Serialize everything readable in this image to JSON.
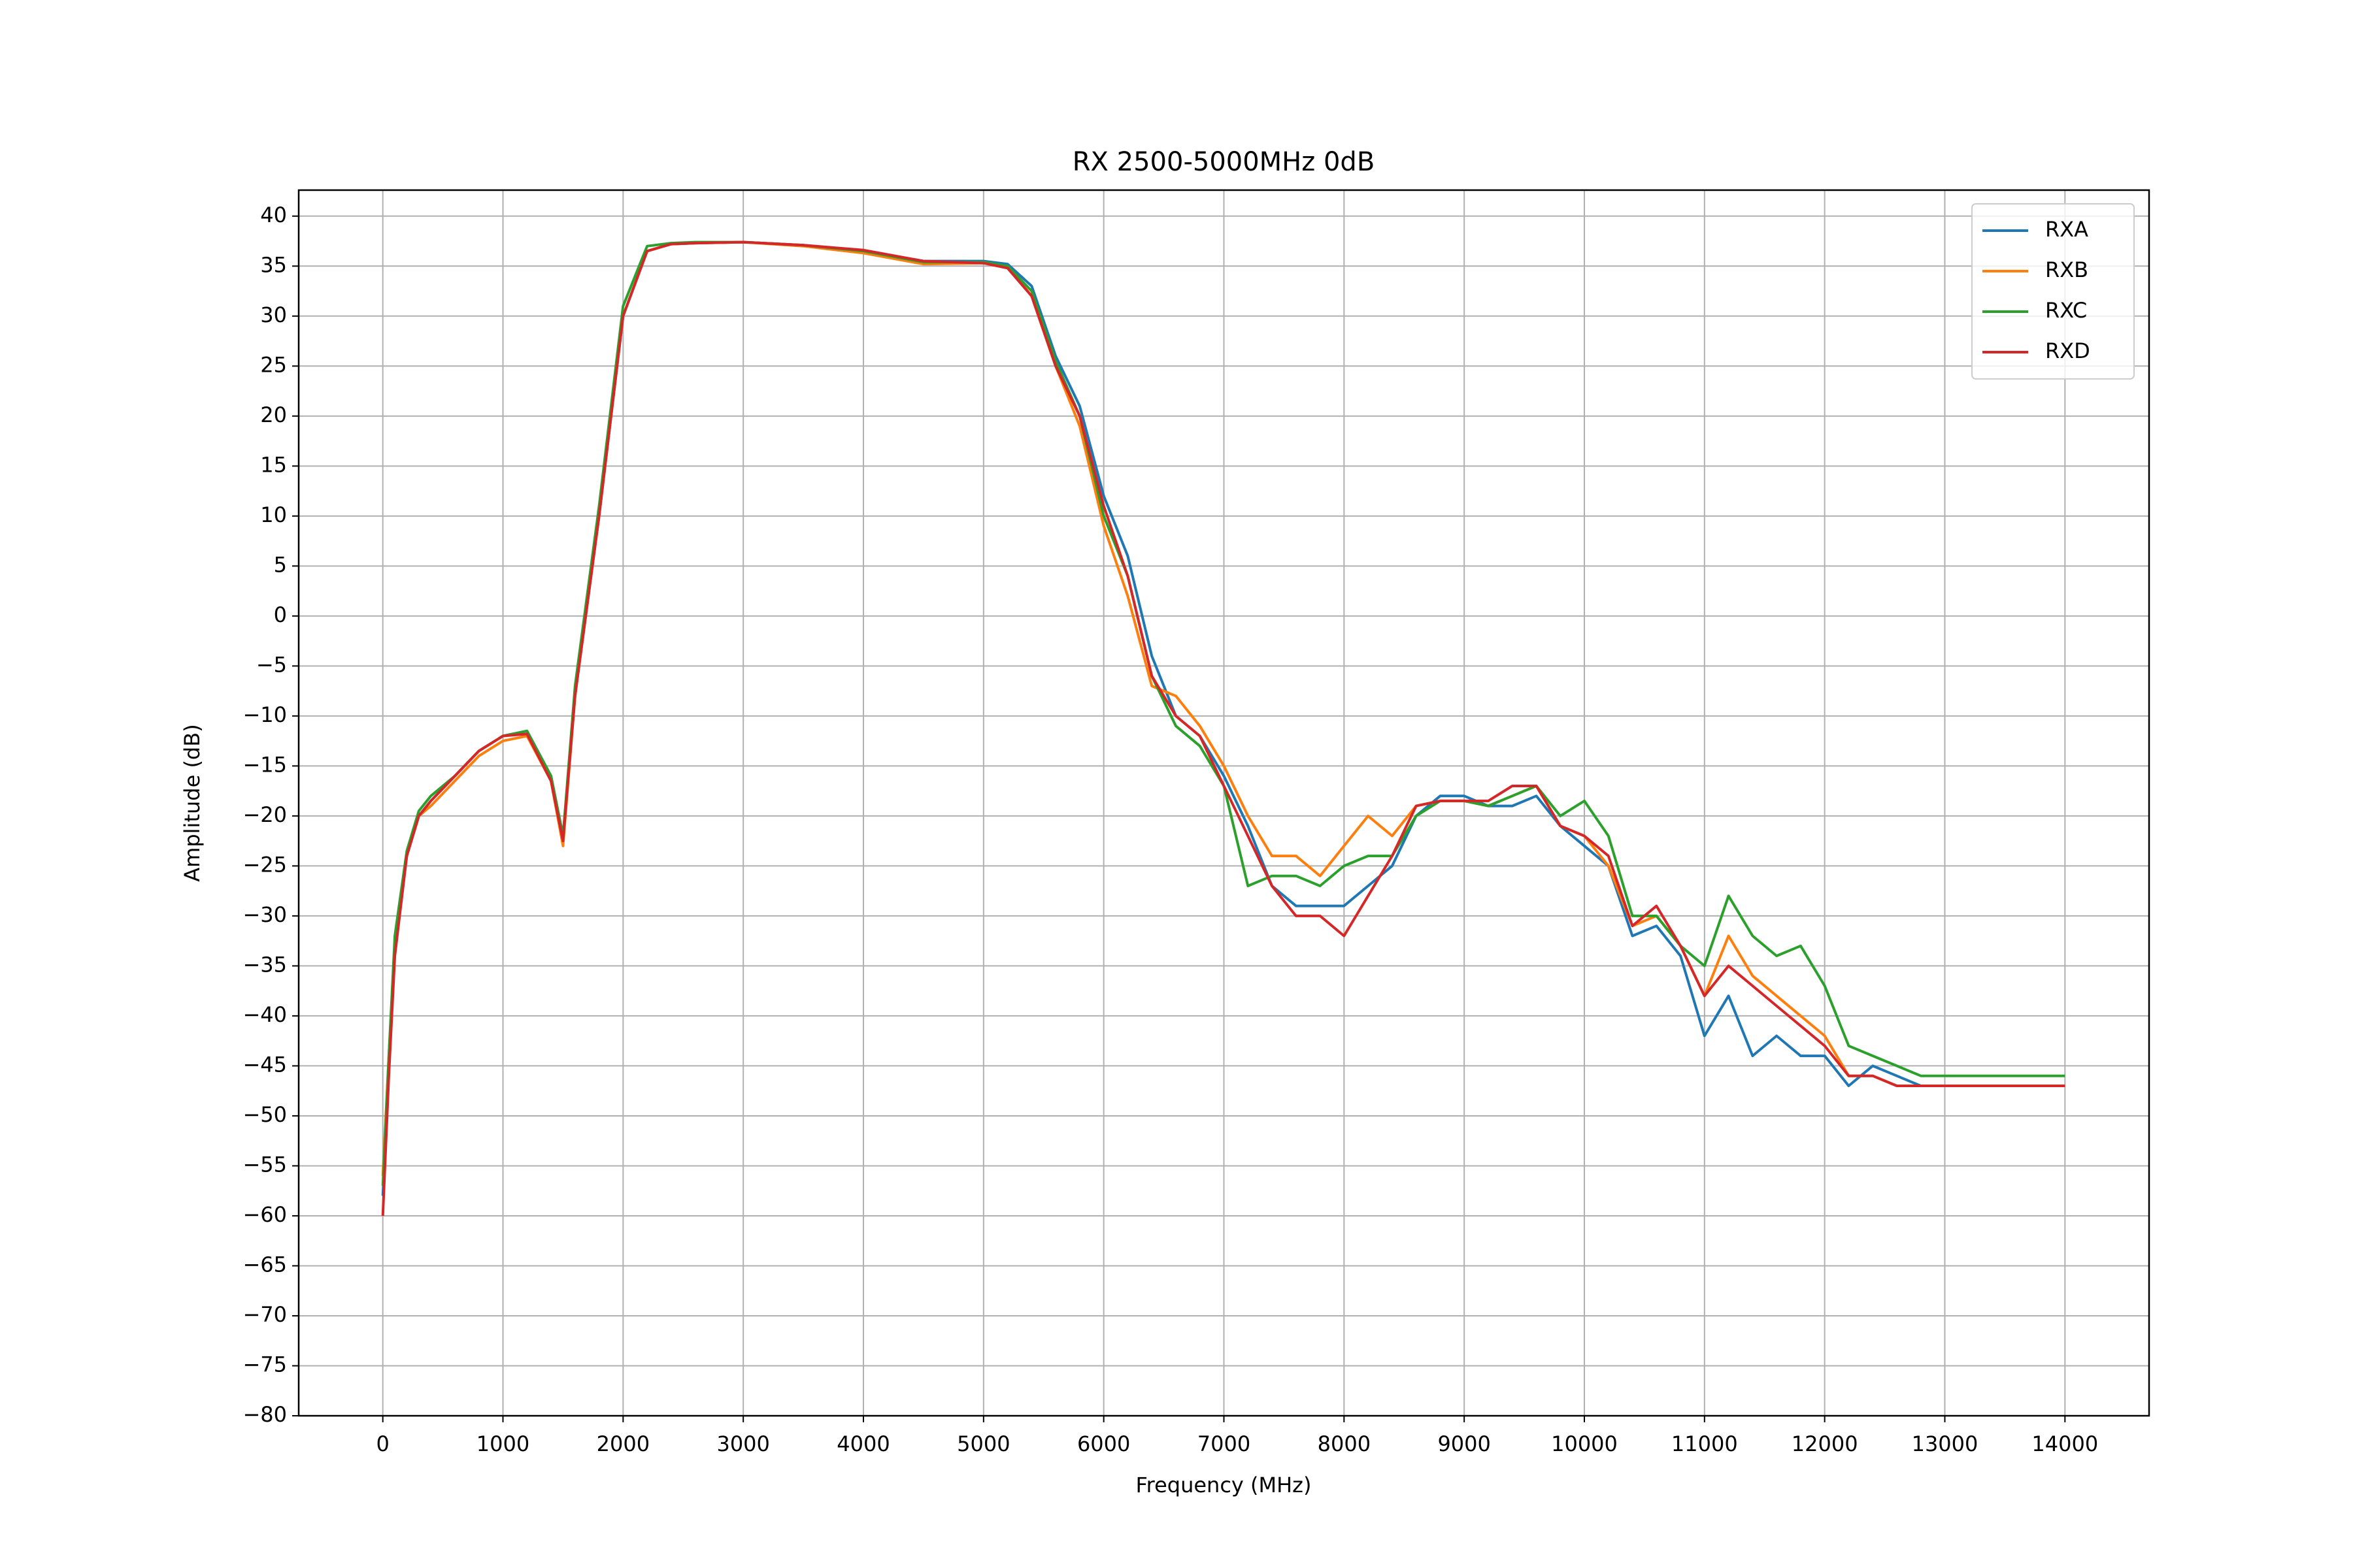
{
  "chart_data": {
    "type": "line",
    "title": "RX 2500-5000MHz 0dB",
    "xlabel": "Frequency (MHz)",
    "ylabel": "Amplitude (dB)",
    "xlim": [
      -700,
      14700
    ],
    "ylim": [
      -80,
      42.6
    ],
    "xticks": [
      0,
      1000,
      2000,
      3000,
      4000,
      5000,
      6000,
      7000,
      8000,
      9000,
      10000,
      11000,
      12000,
      13000,
      14000
    ],
    "yticks": [
      {
        "value": -80,
        "label": "−80"
      },
      {
        "value": -75,
        "label": "−75"
      },
      {
        "value": -70,
        "label": "−70"
      },
      {
        "value": -65,
        "label": "−65"
      },
      {
        "value": -60,
        "label": "−60"
      },
      {
        "value": -55,
        "label": "−55"
      },
      {
        "value": -50,
        "label": "−50"
      },
      {
        "value": -45,
        "label": "−45"
      },
      {
        "value": -40,
        "label": "−40"
      },
      {
        "value": -35,
        "label": "−35"
      },
      {
        "value": -30,
        "label": "−30"
      },
      {
        "value": -25,
        "label": "−25"
      },
      {
        "value": -20,
        "label": "−20"
      },
      {
        "value": -15,
        "label": "−15"
      },
      {
        "value": -10,
        "label": "−10"
      },
      {
        "value": -5,
        "label": "−5"
      },
      0,
      5,
      10,
      15,
      20,
      25,
      30,
      35,
      40
    ],
    "grid": true,
    "legend": "upper right",
    "x": [
      0,
      50,
      100,
      200,
      300,
      400,
      600,
      800,
      1000,
      1200,
      1400,
      1500,
      1600,
      1800,
      2000,
      2200,
      2400,
      2600,
      3000,
      3500,
      4000,
      4500,
      5000,
      5200,
      5400,
      5600,
      5800,
      6000,
      6200,
      6400,
      6600,
      6800,
      7000,
      7200,
      7400,
      7600,
      7800,
      8000,
      8200,
      8400,
      8600,
      8800,
      9000,
      9200,
      9400,
      9600,
      9800,
      10000,
      10200,
      10400,
      10600,
      10800,
      11000,
      11200,
      11400,
      11600,
      11800,
      12000,
      12200,
      12400,
      12600,
      12800,
      13000,
      13200,
      13400,
      13600,
      13800,
      14000
    ],
    "series": [
      {
        "name": "RXA",
        "color": "#1f77b4",
        "values": [
          -58,
          -45,
          -33,
          -24,
          -20,
          -18.5,
          -16,
          -13.5,
          -12,
          -11.5,
          -16,
          -22,
          -8,
          10,
          30,
          36.5,
          37.2,
          37.3,
          37.4,
          37.1,
          36.5,
          35.5,
          35.5,
          35.2,
          33,
          26,
          21,
          12,
          6,
          -4,
          -10,
          -12,
          -16,
          -21,
          -27,
          -29,
          -29,
          -29,
          -27,
          -25,
          -20,
          -18,
          -18,
          -19,
          -19,
          -18,
          -21,
          -23,
          -25,
          -32,
          -31,
          -34,
          -42,
          -38,
          -44,
          -42,
          -44,
          -44,
          -47,
          -45,
          -46,
          -47,
          -47,
          -47,
          -47,
          -47,
          -47,
          -47
        ]
      },
      {
        "name": "RXB",
        "color": "#ff7f0e",
        "values": [
          -56,
          -44,
          -33,
          -24,
          -20,
          -19,
          -16.5,
          -14,
          -12.5,
          -12,
          -16.5,
          -23,
          -8,
          10,
          30,
          36.5,
          37.2,
          37.3,
          37.4,
          37,
          36.3,
          35.2,
          35.3,
          35,
          32,
          25,
          19,
          9,
          2,
          -7,
          -8,
          -11,
          -15,
          -20,
          -24,
          -24,
          -26,
          -23,
          -20,
          -22,
          -19,
          -18.5,
          -18.5,
          -19,
          -18,
          -17,
          -21,
          -22,
          -25,
          -31,
          -30,
          -33,
          -38,
          -32,
          -36,
          -38,
          -40,
          -42,
          -46,
          -46,
          -47,
          -47,
          -47,
          -47,
          -47,
          -47,
          -47,
          -47
        ]
      },
      {
        "name": "RXC",
        "color": "#2ca02c",
        "values": [
          -57,
          -44,
          -32,
          -23.5,
          -19.5,
          -18,
          -16,
          -13.5,
          -12,
          -11.5,
          -16,
          -22,
          -7,
          11,
          31,
          37,
          37.3,
          37.4,
          37.4,
          37.1,
          36.5,
          35.4,
          35.4,
          35,
          32.5,
          25.5,
          20,
          10,
          4,
          -6,
          -11,
          -13,
          -17,
          -27,
          -26,
          -26,
          -27,
          -25,
          -24,
          -24,
          -20,
          -18.5,
          -18.5,
          -19,
          -18,
          -17,
          -20,
          -18.5,
          -22,
          -30,
          -30,
          -33,
          -35,
          -28,
          -32,
          -34,
          -33,
          -37,
          -43,
          -44,
          -45,
          -46,
          -46,
          -46,
          -46,
          -46,
          -46,
          -46
        ]
      },
      {
        "name": "RXD",
        "color": "#d62728",
        "values": [
          -60,
          -46,
          -34,
          -24,
          -20,
          -18.5,
          -16,
          -13.5,
          -12,
          -11.8,
          -16.5,
          -22.5,
          -8,
          10,
          30,
          36.5,
          37.2,
          37.3,
          37.4,
          37.1,
          36.6,
          35.5,
          35.3,
          34.8,
          32,
          25,
          20,
          11,
          4,
          -6,
          -10,
          -12,
          -17,
          -22,
          -27,
          -30,
          -30,
          -32,
          -28,
          -24,
          -19,
          -18.5,
          -18.5,
          -18.5,
          -17,
          -17,
          -21,
          -22,
          -24,
          -31,
          -29,
          -33,
          -38,
          -35,
          -37,
          -39,
          -41,
          -43,
          -46,
          -46,
          -47,
          -47,
          -47,
          -47,
          -47,
          -47,
          -47,
          -47
        ]
      }
    ]
  }
}
